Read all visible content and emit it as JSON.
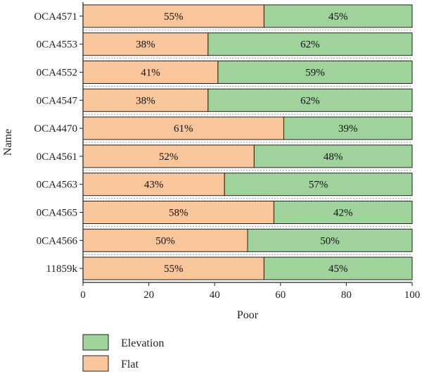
{
  "chart_data": {
    "type": "bar",
    "orientation": "horizontal",
    "stacked": true,
    "xlabel": "Poor",
    "ylabel": "Name",
    "xlim": [
      0,
      100
    ],
    "xticks": [
      "0",
      "20",
      "40",
      "60",
      "80",
      "100"
    ],
    "categories": [
      "OCA4571",
      "0CA4553",
      "0CA4552",
      "0CA4547",
      "OCA4470",
      "0CA4561",
      "0CA4563",
      "0CA4565",
      "0CA4566",
      "11859k"
    ],
    "series": [
      {
        "name": "Flat",
        "color": "#f9c59b",
        "values": [
          55,
          38,
          41,
          38,
          61,
          52,
          43,
          58,
          50,
          55
        ],
        "labels": [
          "55%",
          "38%",
          "41%",
          "38%",
          "61%",
          "52%",
          "43%",
          "58%",
          "50%",
          "55%"
        ]
      },
      {
        "name": "Elevation",
        "color": "#9fd39b",
        "values": [
          45,
          62,
          59,
          62,
          39,
          48,
          57,
          42,
          50,
          45
        ],
        "labels": [
          "45%",
          "62%",
          "59%",
          "62%",
          "39%",
          "48%",
          "57%",
          "42%",
          "50%",
          "45%"
        ]
      }
    ],
    "legend": {
      "placement": "bottom-left",
      "order": [
        "Elevation",
        "Flat"
      ]
    }
  }
}
